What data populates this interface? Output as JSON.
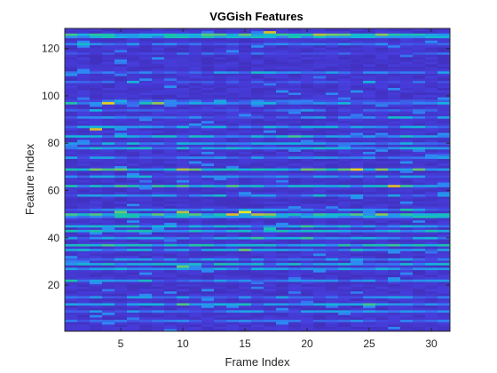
{
  "chart_data": {
    "type": "heatmap",
    "title": "VGGish Features",
    "xlabel": "Frame Index",
    "ylabel": "Feature Index",
    "x_range": [
      0.5,
      31.5
    ],
    "y_range": [
      0.5,
      128.5
    ],
    "y_direction": "normal",
    "n_frames": 31,
    "n_features": 128,
    "x_ticks": [
      5,
      10,
      15,
      20,
      25,
      30
    ],
    "y_ticks": [
      20,
      40,
      60,
      80,
      100,
      120
    ],
    "colormap": "parula",
    "colors": {
      "low": "#3e26a8",
      "mid_low": "#2e87f4",
      "mid": "#19c3ab",
      "high": "#dbbb2a",
      "max": "#f9fb15"
    },
    "value_scale": [
      0,
      1
    ],
    "row_profile": [
      {
        "feature": 126,
        "level": 0.55
      },
      {
        "feature": 125,
        "level": 0.45
      },
      {
        "feature": 122,
        "level": 0.25
      },
      {
        "feature": 118,
        "level": 0.2
      },
      {
        "feature": 110,
        "level": 0.3
      },
      {
        "feature": 106,
        "level": 0.2
      },
      {
        "feature": 98,
        "level": 0.25
      },
      {
        "feature": 97,
        "level": 0.35
      },
      {
        "feature": 94,
        "level": 0.2
      },
      {
        "feature": 91,
        "level": 0.25
      },
      {
        "feature": 87,
        "level": 0.35
      },
      {
        "feature": 83,
        "level": 0.4
      },
      {
        "feature": 80,
        "level": 0.35
      },
      {
        "feature": 78,
        "level": 0.4
      },
      {
        "feature": 74,
        "level": 0.3
      },
      {
        "feature": 69,
        "level": 0.55
      },
      {
        "feature": 66,
        "level": 0.3
      },
      {
        "feature": 62,
        "level": 0.5
      },
      {
        "feature": 58,
        "level": 0.3
      },
      {
        "feature": 52,
        "level": 0.3
      },
      {
        "feature": 50,
        "level": 0.6
      },
      {
        "feature": 49,
        "level": 0.45
      },
      {
        "feature": 45,
        "level": 0.4
      },
      {
        "feature": 43,
        "level": 0.45
      },
      {
        "feature": 40,
        "level": 0.35
      },
      {
        "feature": 37,
        "level": 0.5
      },
      {
        "feature": 35,
        "level": 0.35
      },
      {
        "feature": 31,
        "level": 0.3
      },
      {
        "feature": 29,
        "level": 0.4
      },
      {
        "feature": 27,
        "level": 0.35
      },
      {
        "feature": 22,
        "level": 0.3
      },
      {
        "feature": 15,
        "level": 0.3
      },
      {
        "feature": 12,
        "level": 0.35
      },
      {
        "feature": 9,
        "level": 0.3
      },
      {
        "feature": 5,
        "level": 0.25
      }
    ],
    "hot_cells": [
      {
        "frame": 4,
        "feature": 97,
        "level": 0.9
      },
      {
        "frame": 3,
        "feature": 86,
        "level": 0.85
      },
      {
        "frame": 8,
        "feature": 97,
        "level": 0.75
      },
      {
        "frame": 15,
        "feature": 51,
        "level": 0.95
      },
      {
        "frame": 14,
        "feature": 50,
        "level": 0.85
      },
      {
        "frame": 10,
        "feature": 51,
        "level": 0.8
      },
      {
        "frame": 17,
        "feature": 127,
        "level": 0.85
      },
      {
        "frame": 21,
        "feature": 126,
        "level": 0.8
      },
      {
        "frame": 26,
        "feature": 126,
        "level": 0.75
      },
      {
        "frame": 10,
        "feature": 69,
        "level": 0.8
      },
      {
        "frame": 11,
        "feature": 69,
        "level": 0.7
      },
      {
        "frame": 26,
        "feature": 69,
        "level": 0.75
      },
      {
        "frame": 4,
        "feature": 69,
        "level": 0.65
      },
      {
        "frame": 5,
        "feature": 51,
        "level": 0.7
      },
      {
        "frame": 15,
        "feature": 35,
        "level": 0.7
      },
      {
        "frame": 10,
        "feature": 28,
        "level": 0.7
      },
      {
        "frame": 17,
        "feature": 44,
        "level": 0.6
      },
      {
        "frame": 1,
        "feature": 22,
        "level": 0.6
      },
      {
        "frame": 19,
        "feature": 83,
        "level": 0.65
      }
    ]
  }
}
